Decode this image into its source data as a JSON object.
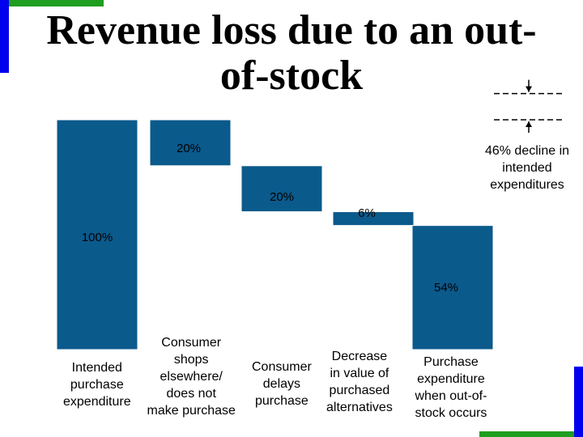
{
  "title": "Revenue loss due to an out-of-stock",
  "chart_data": {
    "type": "bar",
    "subtype": "waterfall",
    "categories": [
      [
        "Intended",
        "purchase",
        "expenditure"
      ],
      [
        "Consumer",
        "shops",
        "elsewhere/",
        "does not",
        "make purchase"
      ],
      [
        "Consumer",
        "delays",
        "purchase"
      ],
      [
        "Decrease",
        "in value of",
        "purchased",
        "alternatives"
      ],
      [
        "Purchase",
        "expenditure",
        "when out-of-",
        "stock occurs"
      ]
    ],
    "values": [
      100,
      -20,
      -20,
      -6,
      54
    ],
    "value_labels": [
      "100%",
      "20%",
      "20%",
      "6%",
      "54%"
    ],
    "ylim": [
      0,
      100
    ],
    "bar_color": "#0B5A8C",
    "annotation": {
      "text": "46% decline in intended expenditures",
      "from": 100,
      "to": 54
    }
  },
  "colors": {
    "accent_blue": "#0000EE",
    "accent_green": "#1F9E1F"
  }
}
